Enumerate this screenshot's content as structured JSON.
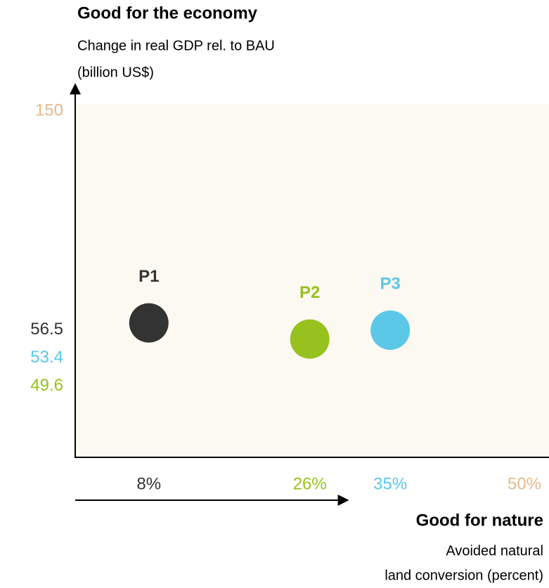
{
  "chart_data": {
    "type": "scatter",
    "title": "Good for the economy",
    "y_label": [
      "Change in real GDP rel. to BAU",
      "(billion US$)"
    ],
    "x_title": "Good for nature",
    "x_label": [
      "Avoided natural",
      "land conversion (percent)"
    ],
    "series": [
      {
        "name": "P1",
        "color": "#333333",
        "x": [
          8
        ],
        "values": [
          56.5
        ]
      },
      {
        "name": "P2",
        "color": "#97c11f",
        "x": [
          26
        ],
        "values": [
          49.6
        ]
      },
      {
        "name": "P3",
        "color": "#5bc8e8",
        "x": [
          35
        ],
        "values": [
          53.4
        ]
      }
    ],
    "xlim": [
      0,
      50
    ],
    "ylim": [
      0,
      150
    ],
    "xticks": [
      {
        "value": 8,
        "label": "8%"
      },
      {
        "value": 26,
        "label": "26%"
      },
      {
        "value": 35,
        "label": "35%"
      },
      {
        "value": 50,
        "label": "50%"
      }
    ],
    "xtick_colors": [
      "#333333",
      "#97c11f",
      "#5bc8e8",
      "#e6b98a"
    ],
    "yticks": [
      150,
      56.5,
      53.4,
      49.6
    ],
    "ytick_colors": [
      "#e6b98a",
      "#333333",
      "#5bc8e8",
      "#97c11f"
    ],
    "plot_background": "#fcf8f2"
  }
}
